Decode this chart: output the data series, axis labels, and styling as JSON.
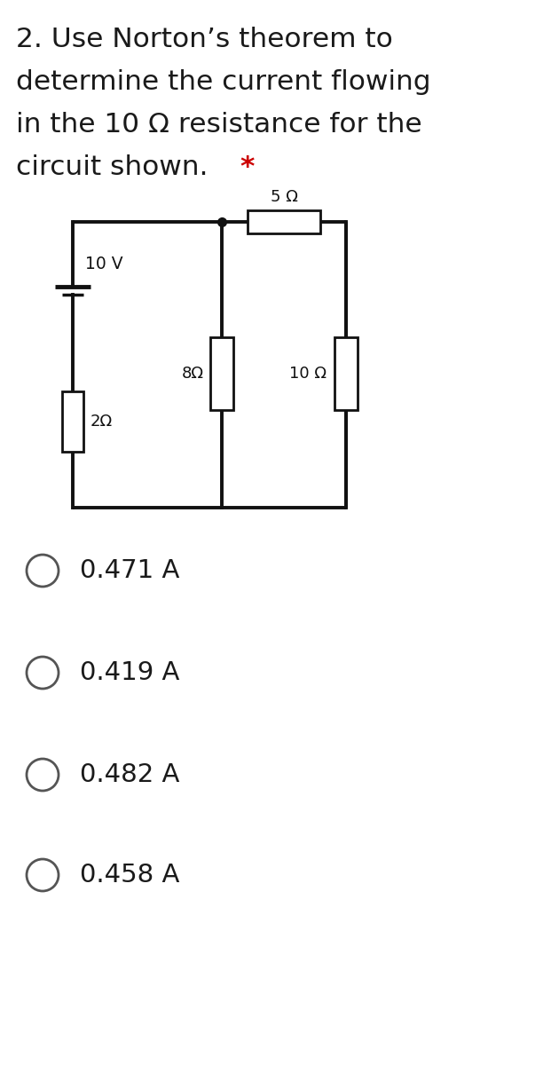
{
  "title_lines": [
    "2. Use Norton’s theorem to",
    "determine the current flowing",
    "in the 10 Ω resistance for the",
    "circuit shown."
  ],
  "title_star": "*",
  "star_color": "#cc0000",
  "text_color": "#1a1a1a",
  "bg_color": "#ffffff",
  "circuit_bg": "#e0e0e0",
  "circuit_line_color": "#111111",
  "options": [
    "0.471 A",
    "0.419 A",
    "0.482 A",
    "0.458 A"
  ],
  "option_text_color": "#1a1a1a",
  "circle_color": "#555555",
  "resistor_labels": [
    "2Ω",
    "8Ω",
    "10 Ω",
    "5 Ω"
  ],
  "battery_label": "10 V",
  "title_fontsize": 22.5,
  "option_fontsize": 21
}
